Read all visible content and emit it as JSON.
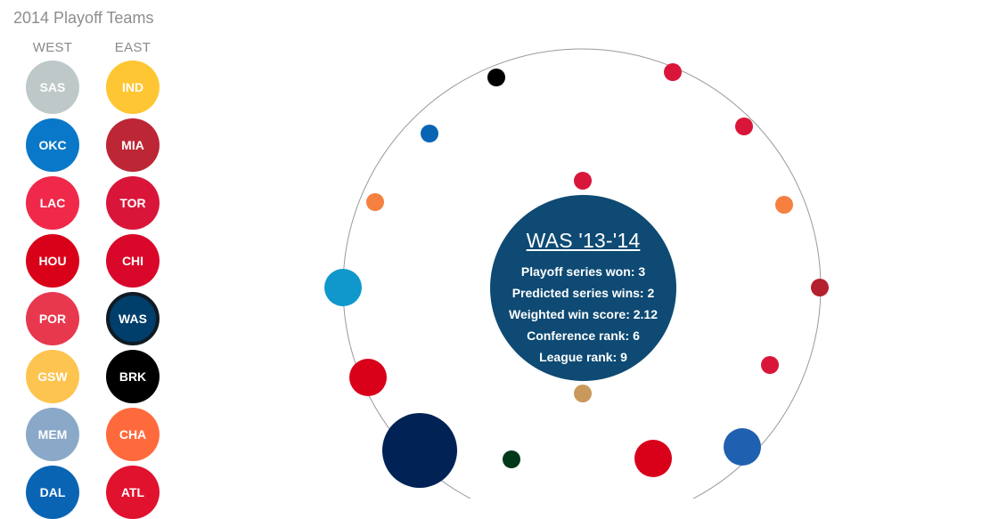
{
  "header": {
    "title": "2014 Playoff Teams"
  },
  "columns": {
    "west": "WEST",
    "east": "EAST"
  },
  "teams": {
    "west": [
      {
        "abbr": "SAS",
        "color": "#bec8c8"
      },
      {
        "abbr": "OKC",
        "color": "#0a78c8"
      },
      {
        "abbr": "LAC",
        "color": "#f0284a"
      },
      {
        "abbr": "HOU",
        "color": "#d9001a"
      },
      {
        "abbr": "POR",
        "color": "#e8384e"
      },
      {
        "abbr": "GSW",
        "color": "#fdc44f"
      },
      {
        "abbr": "MEM",
        "color": "#8aa8c8"
      },
      {
        "abbr": "DAL",
        "color": "#0a64b4"
      }
    ],
    "east": [
      {
        "abbr": "IND",
        "color": "#ffc633"
      },
      {
        "abbr": "MIA",
        "color": "#bd2635"
      },
      {
        "abbr": "TOR",
        "color": "#d9163a"
      },
      {
        "abbr": "CHI",
        "color": "#d9082a"
      },
      {
        "abbr": "WAS",
        "color": "#003e6b",
        "selected": true
      },
      {
        "abbr": "BRK",
        "color": "#000000"
      },
      {
        "abbr": "CHA",
        "color": "#ff6a3d"
      },
      {
        "abbr": "ATL",
        "color": "#e0122e"
      }
    ]
  },
  "detail": {
    "title": "WAS '13-'14",
    "color": "#0e4a73",
    "lines": [
      "Playoff series won: 3",
      "Predicted series wins: 2",
      "Weighted win score: 2.12",
      "Conference rank: 6",
      "League rank: 9"
    ]
  },
  "ring": {
    "stroke": "#9a9a9a",
    "dots": [
      {
        "color": "#000000",
        "size": "small"
      },
      {
        "color": "#d9163a",
        "size": "small"
      },
      {
        "color": "#0a64b4",
        "size": "small"
      },
      {
        "color": "#d9163a",
        "size": "small"
      },
      {
        "color": "#d9163a",
        "size": "small"
      },
      {
        "color": "#f58040",
        "size": "small"
      },
      {
        "color": "#f58040",
        "size": "small"
      },
      {
        "color": "#1098cc",
        "size": "medium"
      },
      {
        "color": "#b5202e",
        "size": "small"
      },
      {
        "color": "#d9163a",
        "size": "small"
      },
      {
        "color": "#d9001a",
        "size": "medium"
      },
      {
        "color": "#c8995a",
        "size": "small"
      },
      {
        "color": "#002255",
        "size": "large"
      },
      {
        "color": "#00381a",
        "size": "small"
      },
      {
        "color": "#d9001a",
        "size": "medium"
      },
      {
        "color": "#2060b0",
        "size": "medium"
      }
    ]
  }
}
